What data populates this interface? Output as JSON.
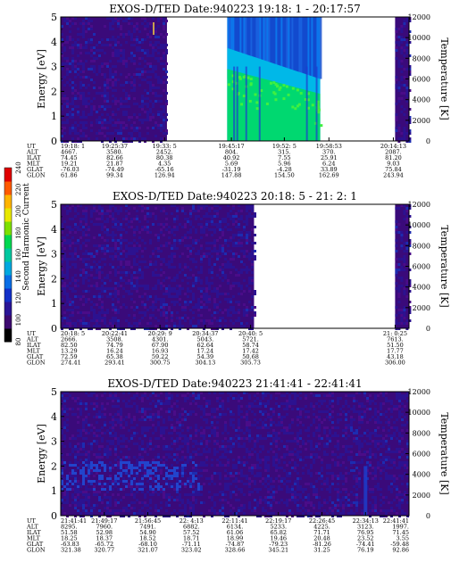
{
  "colorbar": {
    "label": "Second Harmonic Current",
    "ticks": [
      "80",
      "100",
      "120",
      "140",
      "160",
      "180",
      "200",
      "220",
      "240"
    ],
    "colors": [
      "#000000",
      "#3d0a70",
      "#2a1596",
      "#1330c8",
      "#0a6ee6",
      "#00a8e0",
      "#00c8a0",
      "#00d850",
      "#7ee000",
      "#e8e800",
      "#ffb400",
      "#ff5a00",
      "#e00000"
    ]
  },
  "ephem_labels": [
    "UT",
    "ALT",
    "ILAT",
    "MLT",
    "GLAT",
    "GLON"
  ],
  "chart_data": [
    {
      "type": "heatmap",
      "title": "EXOS-D/TED   Date:940223  19:18: 1 - 20:17:57",
      "ylabel": "Energy [eV]",
      "ylabel_right": "Temperature [K]",
      "ylim": [
        0,
        5
      ],
      "ylim_right": [
        0,
        12000
      ],
      "yticks": [
        0,
        1,
        2,
        3,
        4,
        5
      ],
      "yticks_right": [
        0,
        2000,
        4000,
        6000,
        8000,
        10000,
        12000
      ],
      "data_segments": [
        [
          0,
          0.305
        ],
        [
          0.478,
          0.745
        ],
        [
          0.96,
          1.0
        ]
      ],
      "feature": "ion-burst",
      "ephemeris": [
        {
          "f": 0.0,
          "UT": "19:18: 1",
          "ALT": "4667.",
          "ILAT": "74.45",
          "MLT": "19.21",
          "GLAT": "-76.03",
          "GLON": "61.86"
        },
        {
          "f": 0.155,
          "UT": "19:25:37",
          "ALT": "3580.",
          "ILAT": "82.66",
          "MLT": "21.87",
          "GLAT": "-74.49",
          "GLON": "99.34"
        },
        {
          "f": 0.298,
          "UT": "19:33: 5",
          "ALT": "2452.",
          "ILAT": "80.38",
          "MLT": "4.35",
          "GLAT": "-65.16",
          "GLON": "126.94"
        },
        {
          "f": 0.49,
          "UT": "19:45:17",
          "ALT": "804.",
          "ILAT": "40.92",
          "MLT": "5.69",
          "GLAT": "-31.19",
          "GLON": "147.88"
        },
        {
          "f": 0.642,
          "UT": "19:52: 5",
          "ALT": "315.",
          "ILAT": "7.55",
          "MLT": "5.96",
          "GLAT": "-4.28",
          "GLON": "154.50"
        },
        {
          "f": 0.77,
          "UT": "19:58:53",
          "ALT": "370.",
          "ILAT": "25.91",
          "MLT": "6.24",
          "GLAT": "33.89",
          "GLON": "162.69"
        },
        {
          "f": 0.955,
          "UT": "20:14:13",
          "ALT": "2087.",
          "ILAT": "81.20",
          "MLT": "9.03",
          "GLAT": "75.84",
          "GLON": "243.94"
        }
      ]
    },
    {
      "type": "heatmap",
      "title": "EXOS-D/TED   Date:940223  20:18: 5 - 21: 2: 1",
      "ylabel": "Energy [eV]",
      "ylabel_right": "Temperature [K]",
      "ylim": [
        0,
        5
      ],
      "ylim_right": [
        0,
        12000
      ],
      "yticks": [
        0,
        1,
        2,
        3,
        4,
        5
      ],
      "yticks_right": [
        0,
        2000,
        4000,
        6000,
        8000,
        10000,
        12000
      ],
      "data_segments": [
        [
          0,
          0.555
        ],
        [
          0.96,
          1.0
        ]
      ],
      "feature": "noise",
      "ephemeris": [
        {
          "f": 0.0,
          "UT": "20:18: 5",
          "ALT": "2666.",
          "ILAT": "82.50",
          "MLT": "13.29",
          "GLAT": "72.59",
          "GLON": "274.41"
        },
        {
          "f": 0.155,
          "UT": "20:22:41",
          "ALT": "3508.",
          "ILAT": "74.79",
          "MLT": "16.24",
          "GLAT": "65.38",
          "GLON": "293.41"
        },
        {
          "f": 0.285,
          "UT": "20:29: 9",
          "ALT": "4301.",
          "ILAT": "67.90",
          "MLT": "16.93",
          "GLAT": "59.22",
          "GLON": "300.75"
        },
        {
          "f": 0.415,
          "UT": "20:34:37",
          "ALT": "5043.",
          "ILAT": "62.64",
          "MLT": "17.24",
          "GLAT": "54.39",
          "GLON": "304.13"
        },
        {
          "f": 0.545,
          "UT": "20:40: 5",
          "ALT": "5721.",
          "ILAT": "58.74",
          "MLT": "17.42",
          "GLAT": "50.68",
          "GLON": "305.73"
        },
        {
          "f": 0.96,
          "UT": "21: 0:25",
          "ALT": "7613.",
          "ILAT": "51.50",
          "MLT": "17.77",
          "GLAT": "43.18",
          "GLON": "306.00"
        }
      ]
    },
    {
      "type": "heatmap",
      "title": "EXOS-D/TED   Date:940223  21:41:41 - 22:41:41",
      "ylabel": "Energy [eV]",
      "ylabel_right": "Temperature [K]",
      "ylim": [
        0,
        5
      ],
      "ylim_right": [
        0,
        12000
      ],
      "yticks": [
        0,
        1,
        2,
        3,
        4,
        5
      ],
      "yticks_right": [
        0,
        2000,
        4000,
        6000,
        8000,
        10000,
        12000
      ],
      "data_segments": [
        [
          0,
          1.0
        ]
      ],
      "feature": "noise-low-band",
      "ephemeris": [
        {
          "f": 0.0,
          "UT": "21:41:41",
          "ALT": "8295.",
          "ILAT": "51.58",
          "MLT": "18.25",
          "GLAT": "-63.83",
          "GLON": "321.38"
        },
        {
          "f": 0.125,
          "UT": "21:49:17",
          "ALT": "7960.",
          "ILAT": "52.98",
          "MLT": "18.37",
          "GLAT": "-65.72",
          "GLON": "320.77"
        },
        {
          "f": 0.25,
          "UT": "21:56:45",
          "ALT": "7491.",
          "ILAT": "54.90",
          "MLT": "18.52",
          "GLAT": "-68.10",
          "GLON": "321.07"
        },
        {
          "f": 0.375,
          "UT": "22: 4:13",
          "ALT": "6882.",
          "ILAT": "57.52",
          "MLT": "18.71",
          "GLAT": "-71.11",
          "GLON": "323.02"
        },
        {
          "f": 0.5,
          "UT": "22:11:41",
          "ALT": "6134.",
          "ILAT": "61.06",
          "MLT": "18.99",
          "GLAT": "-74.87",
          "GLON": "328.66"
        },
        {
          "f": 0.625,
          "UT": "22:19:17",
          "ALT": "5233.",
          "ILAT": "65.82",
          "MLT": "19.46",
          "GLAT": "-79.23",
          "GLON": "345.21"
        },
        {
          "f": 0.75,
          "UT": "22:26:45",
          "ALT": "4225.",
          "ILAT": "71.71",
          "MLT": "20.48",
          "GLAT": "-81.26",
          "GLON": "31.25"
        },
        {
          "f": 0.875,
          "UT": "22:34:13",
          "ALT": "3123.",
          "ILAT": "76.95",
          "MLT": "23.52",
          "GLAT": "-74.41",
          "GLON": "76.19"
        },
        {
          "f": 1.0,
          "UT": "22:41:41",
          "ALT": "1997.",
          "ILAT": "71.45",
          "MLT": "3.55",
          "GLAT": "-59.48",
          "GLON": "92.86"
        }
      ]
    }
  ]
}
